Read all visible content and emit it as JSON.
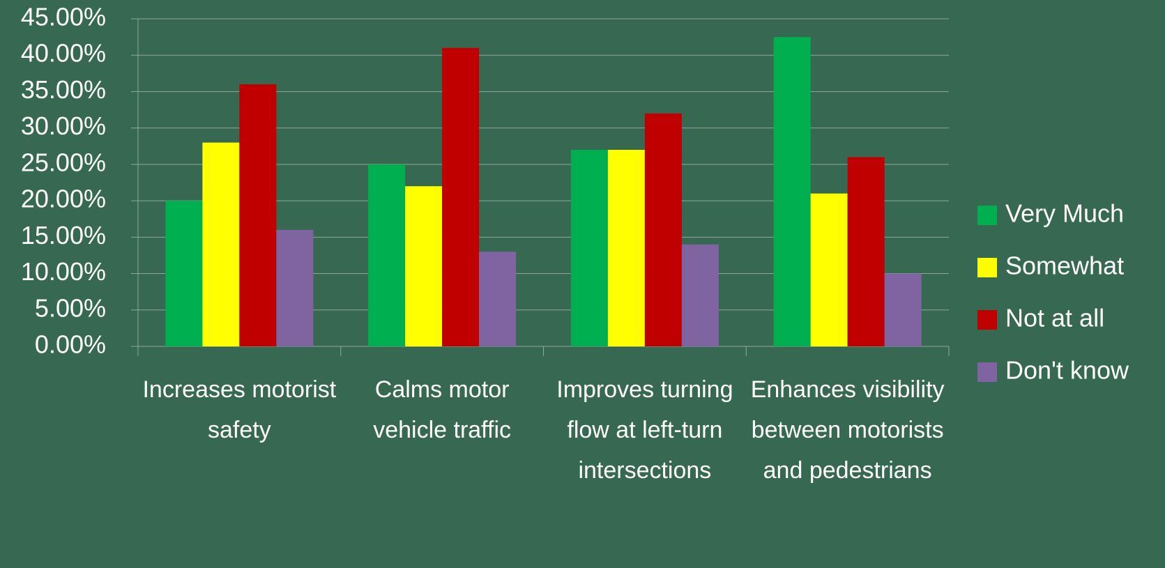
{
  "chart_data": {
    "type": "bar",
    "categories": [
      "Increases motorist safety",
      "Calms motor vehicle traffic",
      "Improves turning flow at left-turn intersections",
      "Enhances visibility between motorists and pedestrians"
    ],
    "series": [
      {
        "name": "Very Much",
        "color": "#00b050",
        "values": [
          20,
          25,
          27,
          42.5
        ]
      },
      {
        "name": "Somewhat",
        "color": "#ffff00",
        "values": [
          28,
          22,
          27,
          21
        ]
      },
      {
        "name": "Not at all",
        "color": "#c00000",
        "values": [
          36,
          41,
          32,
          26
        ]
      },
      {
        "name": "Don't know",
        "color": "#8064a2",
        "values": [
          16,
          13,
          14,
          10
        ]
      }
    ],
    "ylim": [
      0,
      45
    ],
    "yticks": [
      {
        "value": 0,
        "label": "0.00%"
      },
      {
        "value": 5,
        "label": "5.00%"
      },
      {
        "value": 10,
        "label": "10.00%"
      },
      {
        "value": 15,
        "label": "15.00%"
      },
      {
        "value": 20,
        "label": "20.00%"
      },
      {
        "value": 25,
        "label": "25.00%"
      },
      {
        "value": 30,
        "label": "30.00%"
      },
      {
        "value": 35,
        "label": "35.00%"
      },
      {
        "value": 40,
        "label": "40.00%"
      },
      {
        "value": 45,
        "label": "45.00%"
      }
    ],
    "grid": true,
    "legend": "right"
  }
}
